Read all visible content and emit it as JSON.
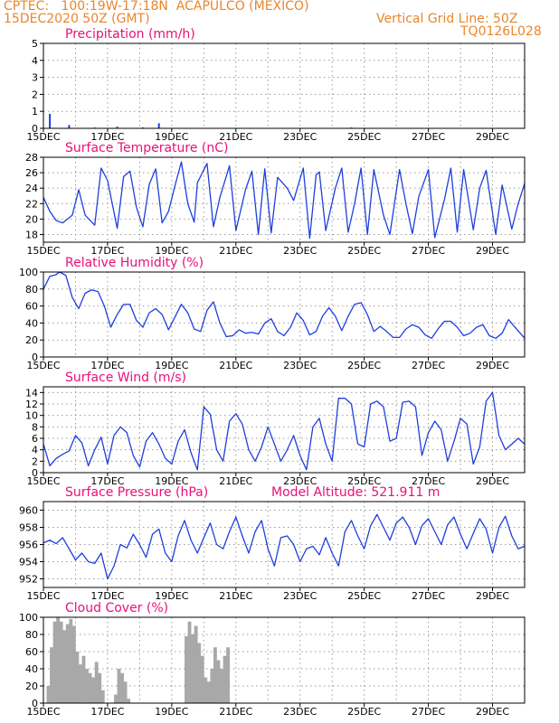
{
  "header": {
    "line1": "CPTEC:   100:19W-17:18N  ACAPULCO (MEXICO)",
    "line2": "15DEC2020 50Z (GMT)",
    "right1": "Vertical Grid Line: 50Z",
    "right2": "TQ0126L028"
  },
  "colors": {
    "header": "#e8862a",
    "title": "#e8107a",
    "line": "#1f3fdd",
    "cloud": "#a8a8a8"
  },
  "chart_data": [
    {
      "type": "bar",
      "title": "Precipitation (mm/h)",
      "x_tick_labels": [
        "15DEC",
        "17DEC",
        "19DEC",
        "21DEC",
        "23DEC",
        "25DEC",
        "27DEC",
        "29DEC"
      ],
      "x": [
        0.2,
        0.8,
        1.6,
        2.3,
        3.1,
        3.6,
        7.8,
        9.6,
        10.3
      ],
      "values": [
        0.85,
        0.2,
        0.05,
        0.1,
        0.05,
        0.3,
        0.02,
        0.05,
        0.02
      ],
      "ylim": [
        0,
        5
      ],
      "yticks": [
        0,
        1,
        2,
        3,
        4,
        5
      ]
    },
    {
      "type": "line",
      "title": "Surface Temperature (nC)",
      "x_tick_labels": [
        "15DEC",
        "17DEC",
        "19DEC",
        "21DEC",
        "23DEC",
        "25DEC",
        "27DEC",
        "29DEC"
      ],
      "x": [
        0,
        0.2,
        0.4,
        0.6,
        0.9,
        1.1,
        1.3,
        1.6,
        1.8,
        2.0,
        2.3,
        2.5,
        2.7,
        2.9,
        3.1,
        3.3,
        3.5,
        3.7,
        3.9,
        4.1,
        4.3,
        4.5,
        4.7,
        4.8,
        5.1,
        5.3,
        5.5,
        5.8,
        6.0,
        6.3,
        6.5,
        6.7,
        6.9,
        7.1,
        7.3,
        7.6,
        7.8,
        8.1,
        8.3,
        8.5,
        8.6,
        8.8,
        9.1,
        9.3,
        9.5,
        9.7,
        9.9,
        10.1,
        10.3,
        10.6,
        10.8,
        11.1,
        11.3,
        11.5,
        11.7,
        12.0,
        12.2,
        12.5,
        12.7,
        12.9,
        13.1,
        13.4,
        13.6,
        13.8,
        14.1,
        14.3,
        14.6,
        14.8,
        15.0
      ],
      "values": [
        22.8,
        21.0,
        19.8,
        19.5,
        20.5,
        23.8,
        20.5,
        19.2,
        26.6,
        25.0,
        18.8,
        25.5,
        26.2,
        21.5,
        19.0,
        24.5,
        26.5,
        19.5,
        21.0,
        24.3,
        27.4,
        22.0,
        19.6,
        24.7,
        27.2,
        19.0,
        22.8,
        26.9,
        18.5,
        23.8,
        26.2,
        18.0,
        26.5,
        18.2,
        25.4,
        24.0,
        22.4,
        26.6,
        17.5,
        25.7,
        26.1,
        18.5,
        24.0,
        26.6,
        18.3,
        22.0,
        26.6,
        18.0,
        26.4,
        20.5,
        18.0,
        26.4,
        22.0,
        18.1,
        22.9,
        26.4,
        17.6,
        22.5,
        26.6,
        18.3,
        26.4,
        18.6,
        24.0,
        26.3,
        18.0,
        24.4,
        18.7,
        22.0,
        24.6
      ],
      "ylim": [
        17,
        28
      ],
      "yticks": [
        18,
        20,
        22,
        24,
        26,
        28
      ]
    },
    {
      "type": "line",
      "title": "Relative Humidity (%)",
      "x_tick_labels": [
        "15DEC",
        "17DEC",
        "19DEC",
        "21DEC",
        "23DEC",
        "25DEC",
        "27DEC",
        "29DEC"
      ],
      "x": [
        0,
        0.2,
        0.4,
        0.5,
        0.7,
        0.9,
        1.1,
        1.3,
        1.5,
        1.7,
        1.9,
        2.1,
        2.3,
        2.5,
        2.7,
        2.9,
        3.1,
        3.3,
        3.5,
        3.7,
        3.9,
        4.1,
        4.3,
        4.5,
        4.7,
        4.9,
        5.1,
        5.3,
        5.5,
        5.7,
        5.9,
        6.1,
        6.3,
        6.5,
        6.7,
        6.9,
        7.1,
        7.3,
        7.5,
        7.7,
        7.9,
        8.1,
        8.3,
        8.5,
        8.7,
        8.9,
        9.1,
        9.3,
        9.5,
        9.7,
        9.9,
        10.1,
        10.3,
        10.5,
        10.7,
        10.9,
        11.1,
        11.3,
        11.5,
        11.7,
        11.9,
        12.1,
        12.3,
        12.5,
        12.7,
        12.9,
        13.1,
        13.3,
        13.5,
        13.7,
        13.9,
        14.1,
        14.3,
        14.5,
        14.7,
        15.0
      ],
      "values": [
        80,
        95,
        97,
        100,
        96,
        70,
        57,
        75,
        79,
        77,
        60,
        35,
        50,
        62,
        62,
        43,
        35,
        52,
        57,
        50,
        32,
        47,
        62,
        52,
        33,
        30,
        55,
        65,
        40,
        24,
        25,
        32,
        28,
        29,
        27,
        40,
        45,
        30,
        25,
        35,
        52,
        43,
        26,
        30,
        48,
        58,
        48,
        31,
        48,
        62,
        64,
        50,
        30,
        36,
        30,
        23,
        23,
        33,
        38,
        35,
        26,
        22,
        33,
        42,
        42,
        35,
        25,
        28,
        35,
        38,
        25,
        22,
        28,
        44,
        35,
        22
      ],
      "ylim": [
        0,
        100
      ],
      "yticks": [
        0,
        20,
        40,
        60,
        80,
        100
      ]
    },
    {
      "type": "line",
      "title": "Surface Wind (m/s)",
      "x_tick_labels": [
        "15DEC",
        "17DEC",
        "19DEC",
        "21DEC",
        "23DEC",
        "25DEC",
        "27DEC",
        "29DEC"
      ],
      "x": [
        0,
        0.2,
        0.4,
        0.6,
        0.8,
        1.0,
        1.2,
        1.4,
        1.6,
        1.8,
        2.0,
        2.2,
        2.4,
        2.6,
        2.8,
        3.0,
        3.2,
        3.4,
        3.6,
        3.8,
        4.0,
        4.2,
        4.4,
        4.6,
        4.8,
        5.0,
        5.2,
        5.4,
        5.6,
        5.8,
        6.0,
        6.2,
        6.4,
        6.6,
        6.8,
        7.0,
        7.2,
        7.4,
        7.6,
        7.8,
        8.0,
        8.2,
        8.4,
        8.6,
        8.8,
        9.0,
        9.2,
        9.4,
        9.6,
        9.8,
        10.0,
        10.2,
        10.4,
        10.6,
        10.8,
        11.0,
        11.2,
        11.4,
        11.6,
        11.8,
        12.0,
        12.2,
        12.4,
        12.6,
        12.8,
        13.0,
        13.2,
        13.4,
        13.6,
        13.8,
        14.0,
        14.2,
        14.4,
        14.6,
        14.8,
        15.0
      ],
      "values": [
        5,
        1.2,
        2.5,
        3.2,
        3.8,
        6.5,
        5.2,
        1.2,
        4.0,
        6.2,
        1.5,
        6.5,
        8.0,
        7.0,
        3.0,
        1.0,
        5.5,
        7.0,
        5.0,
        2.5,
        1.5,
        5.5,
        7.5,
        3.5,
        0.5,
        11.5,
        10.2,
        4.0,
        2.0,
        9.0,
        10.3,
        8.5,
        4.0,
        2.0,
        4.5,
        8.0,
        5.0,
        2.0,
        4.0,
        6.5,
        3.0,
        0.5,
        8.0,
        9.5,
        5.0,
        2.0,
        13.0,
        13.0,
        12.0,
        5.0,
        4.5,
        12.0,
        12.5,
        11.5,
        5.5,
        6.0,
        12.3,
        12.5,
        11.5,
        3.0,
        7.0,
        9.0,
        7.5,
        2.0,
        5.5,
        9.5,
        8.5,
        1.5,
        4.5,
        12.5,
        14.0,
        6.5,
        4.0,
        5.0,
        6.0,
        5.0
      ],
      "ylim": [
        0,
        15
      ],
      "yticks": [
        0,
        2,
        4,
        6,
        8,
        10,
        12,
        14
      ]
    },
    {
      "type": "line",
      "title": "Surface Pressure (hPa)",
      "annotation": "Model Altitude: 521.911 m",
      "x_tick_labels": [
        "15DEC",
        "17DEC",
        "19DEC",
        "21DEC",
        "23DEC",
        "25DEC",
        "27DEC",
        "29DEC"
      ],
      "x": [
        0,
        0.2,
        0.4,
        0.6,
        0.8,
        1.0,
        1.2,
        1.4,
        1.6,
        1.8,
        2.0,
        2.2,
        2.4,
        2.6,
        2.8,
        3.0,
        3.2,
        3.4,
        3.6,
        3.8,
        4.0,
        4.2,
        4.4,
        4.6,
        4.8,
        5.0,
        5.2,
        5.4,
        5.6,
        5.8,
        6.0,
        6.2,
        6.4,
        6.6,
        6.8,
        7.0,
        7.2,
        7.4,
        7.6,
        7.8,
        8.0,
        8.2,
        8.4,
        8.6,
        8.8,
        9.0,
        9.2,
        9.4,
        9.6,
        9.8,
        10.0,
        10.2,
        10.4,
        10.6,
        10.8,
        11.0,
        11.2,
        11.4,
        11.6,
        11.8,
        12.0,
        12.2,
        12.4,
        12.6,
        12.8,
        13.0,
        13.2,
        13.4,
        13.6,
        13.8,
        14.0,
        14.2,
        14.4,
        14.6,
        14.8,
        15.0
      ],
      "values": [
        956.2,
        956.5,
        956.1,
        956.8,
        955.5,
        954.2,
        955.0,
        954.0,
        953.8,
        955.0,
        952.0,
        953.5,
        956.0,
        955.6,
        957.2,
        956.0,
        954.5,
        957.2,
        957.8,
        955.0,
        954.0,
        957.0,
        958.8,
        956.5,
        955.0,
        956.8,
        958.5,
        956.0,
        955.5,
        957.5,
        959.2,
        957.0,
        955.0,
        957.5,
        958.8,
        955.5,
        953.5,
        956.8,
        957.0,
        956.0,
        954.0,
        955.5,
        955.8,
        954.8,
        956.8,
        955.0,
        953.5,
        957.5,
        958.8,
        957.0,
        955.5,
        958.2,
        959.5,
        958.0,
        956.5,
        958.5,
        959.2,
        958.0,
        956.0,
        958.2,
        959.0,
        957.5,
        956.0,
        958.3,
        959.2,
        957.2,
        955.5,
        957.3,
        959.0,
        957.8,
        955.0,
        958.0,
        959.3,
        957.0,
        955.5,
        955.8
      ],
      "ylim": [
        951,
        961
      ],
      "yticks": [
        952,
        954,
        956,
        958,
        960
      ]
    },
    {
      "type": "area",
      "title": "Cloud Cover (%)",
      "x_tick_labels": [
        "15DEC",
        "17DEC",
        "19DEC",
        "21DEC",
        "23DEC",
        "25DEC",
        "27DEC",
        "29DEC"
      ],
      "x": [
        0,
        0.1,
        0.2,
        0.3,
        0.4,
        0.5,
        0.6,
        0.7,
        0.8,
        0.9,
        1.0,
        1.1,
        1.2,
        1.3,
        1.4,
        1.5,
        1.6,
        1.7,
        1.8,
        1.9,
        2.0,
        2.1,
        2.2,
        2.3,
        2.4,
        2.5,
        2.6,
        2.7,
        2.8,
        2.9,
        3.0,
        3.1,
        3.2,
        3.3,
        3.4,
        3.5,
        3.6,
        3.7,
        3.8,
        3.9,
        4.0,
        4.1,
        4.2,
        4.3,
        4.4,
        4.5,
        4.6,
        4.7,
        4.8,
        4.9,
        5.0,
        5.1,
        5.2,
        5.3,
        5.4,
        5.5,
        5.6,
        5.7,
        5.8,
        5.9,
        6.0,
        6.1,
        6.2,
        6.3,
        6.4,
        6.5,
        6.6,
        6.7,
        6.8,
        6.9,
        7.0,
        7.1,
        7.2,
        7.3,
        7.4,
        7.5,
        7.6,
        7.7,
        7.8,
        7.9,
        8.0,
        8.1,
        8.2,
        8.3,
        8.4,
        8.5,
        8.6,
        8.7,
        8.8,
        8.9,
        9.0,
        9.1,
        9.2,
        9.3,
        9.4,
        9.5,
        9.6,
        9.7,
        9.8,
        9.9,
        10.0,
        10.1,
        10.2,
        10.3,
        10.4,
        10.5,
        10.6,
        10.7,
        10.8,
        10.9,
        11.0,
        11.1,
        11.2,
        11.3,
        11.4,
        11.5,
        11.6,
        11.7,
        11.8,
        11.9,
        12.0,
        12.1,
        12.2,
        12.3,
        12.4,
        12.5,
        12.6,
        12.7,
        12.8,
        12.9,
        13.0,
        13.1,
        13.2,
        13.3,
        13.4,
        13.5,
        13.6,
        13.7,
        13.8,
        13.9,
        14.0,
        14.1,
        14.2,
        14.3,
        14.4,
        14.5,
        14.6,
        14.7,
        14.8,
        14.9,
        15.0
      ],
      "values": [
        0,
        20,
        65,
        95,
        100,
        95,
        85,
        92,
        98,
        90,
        60,
        45,
        55,
        40,
        35,
        30,
        48,
        35,
        15,
        0,
        0,
        0,
        10,
        40,
        35,
        25,
        5,
        0,
        0,
        0,
        0,
        0,
        0,
        0,
        0,
        0,
        0,
        0,
        0,
        0,
        0,
        0,
        0,
        0,
        78,
        95,
        80,
        90,
        70,
        55,
        30,
        25,
        40,
        65,
        50,
        40,
        55,
        65,
        0,
        0,
        0,
        0,
        0,
        0,
        0,
        0,
        0,
        0,
        0,
        0,
        0,
        0,
        0,
        0,
        0,
        0,
        0,
        0,
        0,
        0,
        0,
        0,
        0,
        0,
        0,
        0,
        0,
        0,
        0,
        0,
        0,
        0,
        0,
        0,
        0,
        0,
        0,
        0,
        0,
        0,
        0,
        0,
        0,
        0,
        0,
        0,
        0,
        0,
        0,
        0,
        0,
        0,
        0,
        0,
        0,
        0,
        0,
        0,
        0,
        0,
        0,
        0,
        0,
        0,
        0,
        0,
        0,
        0,
        0,
        0,
        0,
        0,
        0,
        0,
        0,
        0,
        0,
        0,
        0,
        0,
        0,
        0,
        0,
        0,
        0,
        0,
        0,
        0,
        0,
        0,
        0
      ],
      "ylim": [
        0,
        100
      ],
      "yticks": [
        0,
        20,
        40,
        60,
        80,
        100
      ]
    }
  ]
}
